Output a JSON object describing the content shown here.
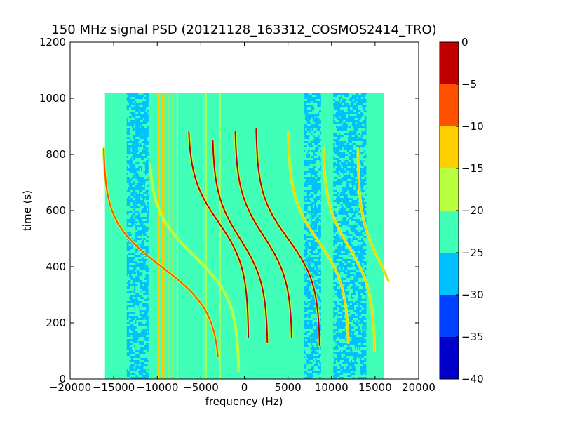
{
  "chart_data": {
    "type": "heatmap",
    "title": "150 MHz signal PSD (20121128_163312_COSMOS2414_TRO)",
    "xlabel": "frequency (Hz)",
    "ylabel": "time (s)",
    "xlim": [
      -20000,
      20000
    ],
    "ylim": [
      0,
      1200
    ],
    "xticks": [
      -20000,
      -15000,
      -10000,
      -5000,
      0,
      5000,
      10000,
      15000,
      20000
    ],
    "xtick_labels": [
      "−20000",
      "−15000",
      "−10000",
      "−5000",
      "0",
      "5000",
      "10000",
      "15000",
      "20000"
    ],
    "yticks": [
      0,
      200,
      400,
      600,
      800,
      1000,
      1200
    ],
    "ytick_labels": [
      "0",
      "200",
      "400",
      "600",
      "800",
      "1000",
      "1200"
    ],
    "data_extent": {
      "x": [
        -16000,
        16000
      ],
      "y": [
        0,
        1020
      ]
    },
    "background_level": -22.5,
    "noise_bands": [
      {
        "x": [
          -13500,
          -12500
        ],
        "level": -27.5
      },
      {
        "x": [
          -12500,
          -11000
        ],
        "level": -27.5
      },
      {
        "x": [
          6800,
          8800
        ],
        "level": -27.5
      },
      {
        "x": [
          10200,
          13000
        ],
        "level": -27.5
      },
      {
        "x": [
          13000,
          14000
        ],
        "level": -27.5
      }
    ],
    "vertical_lines": [
      {
        "x": -9800,
        "level": -12.5
      },
      {
        "x": -9400,
        "level": -12.5
      },
      {
        "x": -9100,
        "level": -12.5
      },
      {
        "x": -8600,
        "level": -12.5
      },
      {
        "x": -8200,
        "level": -12.5
      },
      {
        "x": -7700,
        "level": -17.5
      },
      {
        "x": -4700,
        "level": -12.5
      },
      {
        "x": -4400,
        "level": -17.5
      },
      {
        "x": -2800,
        "level": -17.5
      }
    ],
    "traces": [
      {
        "center_x": -9500,
        "center_y": 400,
        "half_width": 6700,
        "t_start": 80,
        "t_end": 820,
        "level": -7.5
      },
      {
        "center_x": -5800,
        "center_y": 440,
        "half_width": 5200,
        "t_start": 30,
        "t_end": 760,
        "level": -17.5
      },
      {
        "center_x": -3000,
        "center_y": 560,
        "half_width": 3500,
        "t_start": 150,
        "t_end": 880,
        "level": -2.5
      },
      {
        "center_x": -500,
        "center_y": 500,
        "half_width": 3200,
        "t_start": 130,
        "t_end": 850,
        "level": -2.5
      },
      {
        "center_x": 2200,
        "center_y": 510,
        "half_width": 3300,
        "t_start": 150,
        "t_end": 880,
        "level": -2.5
      },
      {
        "center_x": 5000,
        "center_y": 500,
        "half_width": 3700,
        "t_start": 120,
        "t_end": 890,
        "level": -2.5
      },
      {
        "center_x": 8500,
        "center_y": 490,
        "half_width": 3500,
        "t_start": 130,
        "t_end": 880,
        "level": -12.5
      },
      {
        "center_x": 12000,
        "center_y": 470,
        "half_width": 3000,
        "t_start": 100,
        "t_end": 820,
        "level": -12.5
      },
      {
        "center_x": 15500,
        "center_y": 420,
        "half_width": 2500,
        "t_start": 350,
        "t_end": 820,
        "level": -12.5
      }
    ],
    "colorbar": {
      "levels": [
        -40,
        -35,
        -30,
        -25,
        -20,
        -15,
        -10,
        -5,
        0
      ],
      "tick_labels": [
        "−40",
        "−35",
        "−30",
        "−25",
        "−20",
        "−15",
        "−10",
        "−5",
        "0"
      ],
      "colors": [
        "#0000c8",
        "#0040ff",
        "#00c0ff",
        "#40ffb8",
        "#b8ff40",
        "#ffd000",
        "#ff5000",
        "#c00000"
      ]
    }
  }
}
